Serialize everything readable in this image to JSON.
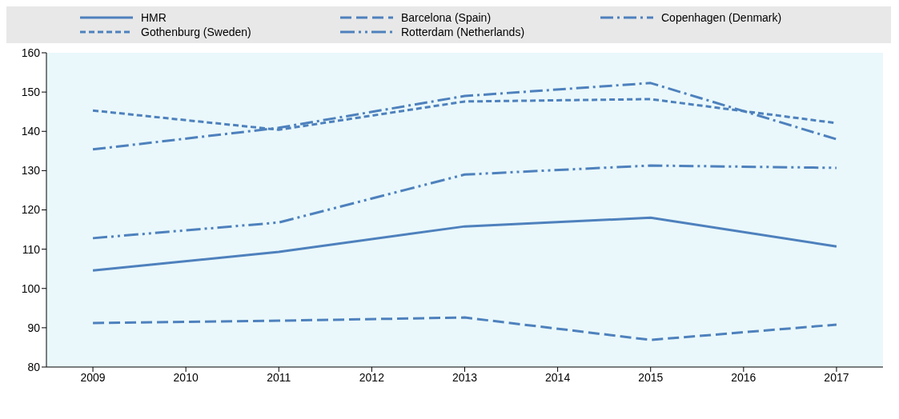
{
  "chart_data": {
    "type": "line",
    "x": [
      2009,
      2011,
      2013,
      2015,
      2017
    ],
    "xlim": [
      2008.5,
      2017.5
    ],
    "xticks": [
      2009,
      2010,
      2011,
      2012,
      2013,
      2014,
      2015,
      2016,
      2017
    ],
    "ylim": [
      80,
      160
    ],
    "yticks": [
      80,
      90,
      100,
      110,
      120,
      130,
      140,
      150,
      160
    ],
    "grid": false,
    "legend": "top",
    "marker": "none",
    "series": [
      {
        "name": "HMR",
        "color": "#4e81bd",
        "line_style": "solid",
        "values": [
          104.6,
          109.3,
          115.8,
          118.0,
          110.7
        ]
      },
      {
        "name": "Barcelona (Spain)",
        "color": "#4e81bd",
        "line_style": "dashed",
        "values": [
          91.2,
          91.8,
          92.6,
          86.9,
          90.8
        ]
      },
      {
        "name": "Copenhagen (Denmark)",
        "color": "#4e81bd",
        "line_style": "dashdot",
        "values": [
          135.4,
          140.9,
          149.0,
          152.3,
          138.0
        ]
      },
      {
        "name": "Gothenburg (Sweden)",
        "color": "#4e81bd",
        "line_style": "dotted",
        "values": [
          145.3,
          140.4,
          147.6,
          148.2,
          142.1
        ]
      },
      {
        "name": "Rotterdam (Netherlands)",
        "color": "#4e81bd",
        "line_style": "dashdotdot",
        "values": [
          112.8,
          116.8,
          129.0,
          131.3,
          130.7
        ]
      }
    ]
  }
}
